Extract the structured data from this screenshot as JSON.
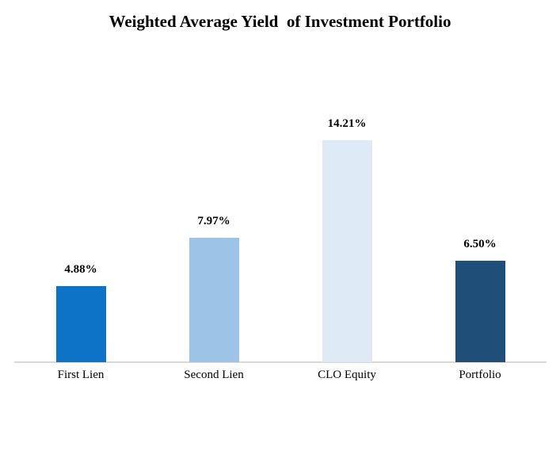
{
  "chart_data": {
    "type": "bar",
    "title": "Weighted Average Yield  of Investment Portfolio",
    "categories": [
      "First Lien",
      "Second Lien",
      "CLO Equity",
      "Portfolio"
    ],
    "values": [
      4.88,
      7.97,
      14.21,
      6.5
    ],
    "value_labels": [
      "4.88%",
      "7.97%",
      "14.21%",
      "6.50%"
    ],
    "series": [
      {
        "name": "Weighted Average Yield",
        "values": [
          4.88,
          7.97,
          14.21,
          6.5
        ]
      }
    ],
    "bar_colors": [
      "#0D73C6",
      "#9DC3E6",
      "#DEEAF6",
      "#1F4E79"
    ],
    "axis_line_color": "#D9D9D9",
    "text_color": "#000000",
    "xlabel": "",
    "ylabel": "",
    "ylim": [
      0,
      15
    ],
    "grid": false,
    "legend": false,
    "y_axis_visible": false,
    "data_labels": true
  }
}
